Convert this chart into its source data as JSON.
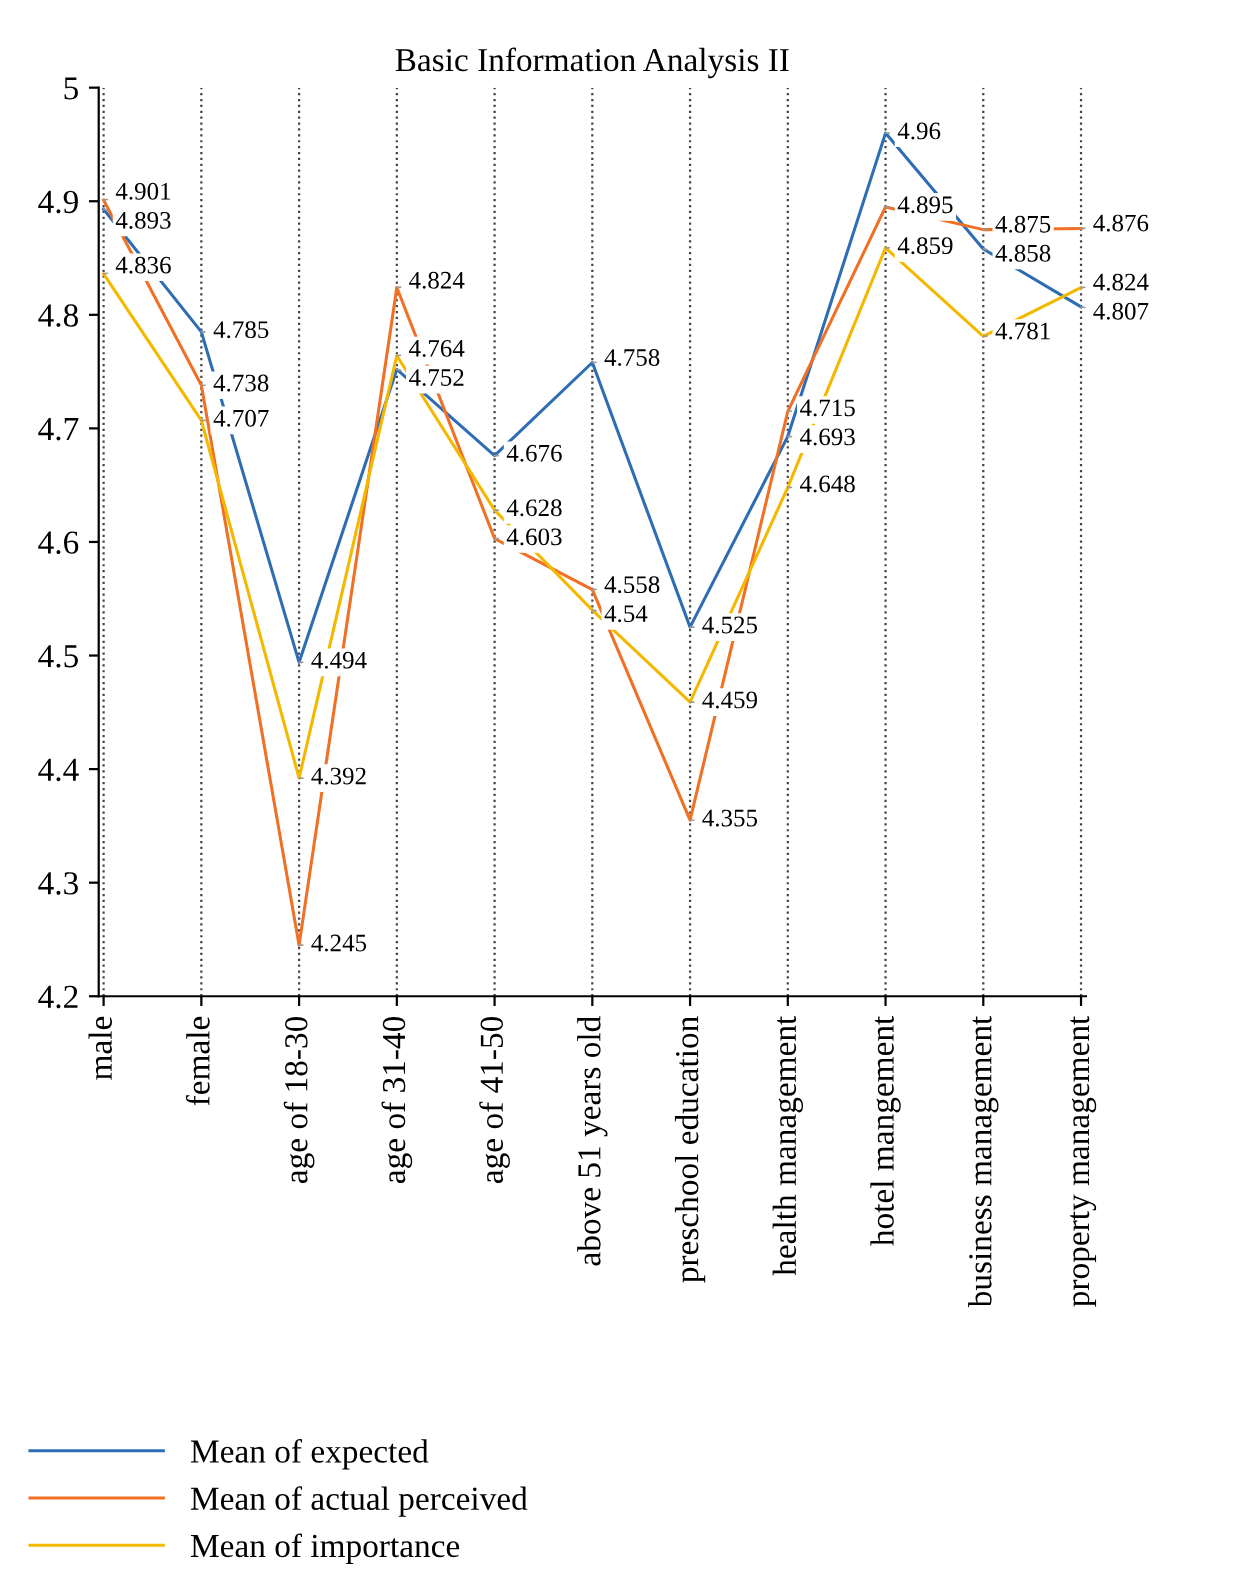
{
  "chart_data": {
    "type": "line",
    "title": "Basic Information Analysis II",
    "categories": [
      "male",
      "female",
      "age of 18-30",
      "age of 31-40",
      "age of 41-50",
      "above 51 years old",
      "preschool education",
      "health management",
      "hotel mangement",
      "business management",
      "property management"
    ],
    "series": [
      {
        "name": "Mean of expected",
        "color": "#2e6db4",
        "values": [
          4.893,
          4.785,
          4.494,
          4.752,
          4.676,
          4.758,
          4.525,
          4.693,
          4.96,
          4.858,
          4.807
        ]
      },
      {
        "name": "Mean of actual perceived",
        "color": "#f07026",
        "values": [
          4.901,
          4.738,
          4.245,
          4.824,
          4.603,
          4.558,
          4.355,
          4.715,
          4.895,
          4.875,
          4.876
        ]
      },
      {
        "name": "Mean of importance",
        "color": "#f5b800",
        "values": [
          4.836,
          4.707,
          4.392,
          4.764,
          4.628,
          4.54,
          4.459,
          4.648,
          4.859,
          4.781,
          4.824
        ]
      }
    ],
    "ylim": [
      4.2,
      5
    ],
    "yticks": [
      4.2,
      4.3,
      4.4,
      4.5,
      4.6,
      4.7,
      4.8,
      4.9,
      5
    ],
    "grid": "x",
    "legend": "bottom left",
    "data_labels": true,
    "marker": "none",
    "line_style": "solid"
  }
}
